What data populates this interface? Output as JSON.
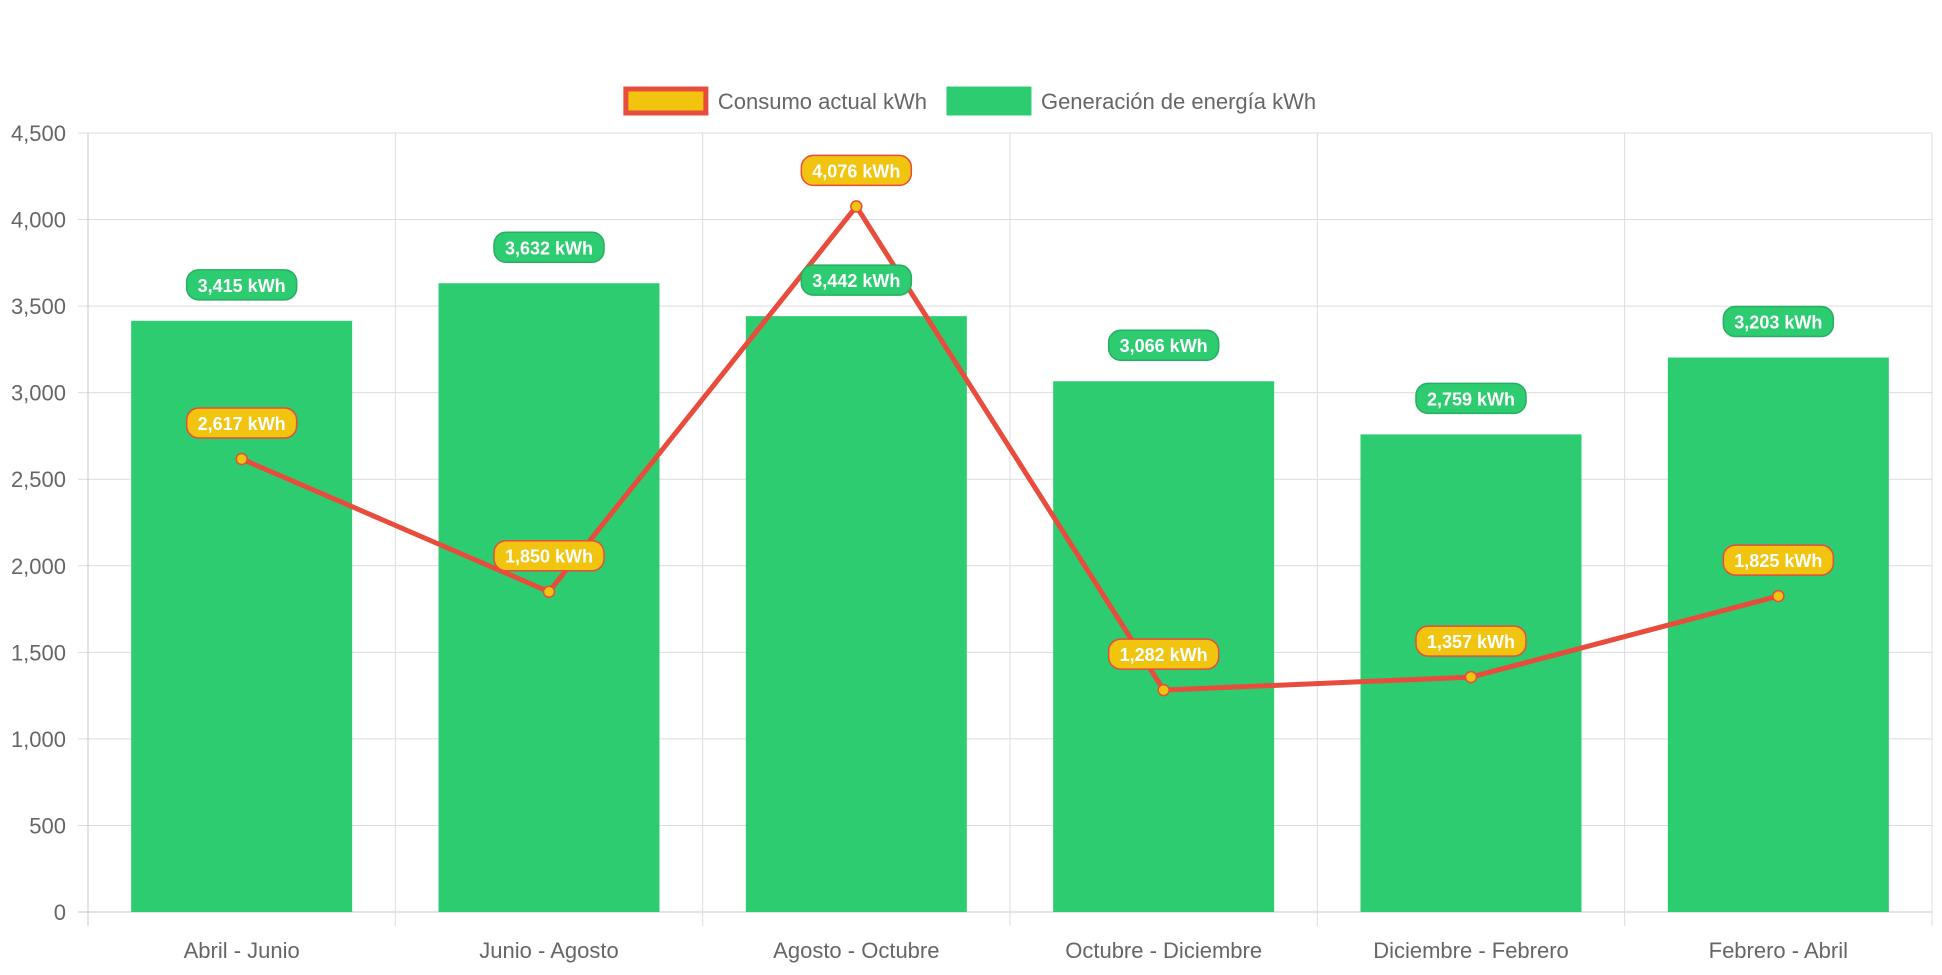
{
  "chart_data": {
    "type": "bar",
    "categories": [
      "Abril - Junio",
      "Junio - Agosto",
      "Agosto - Octubre",
      "Octubre - Diciembre",
      "Diciembre - Febrero",
      "Febrero - Abril"
    ],
    "series": [
      {
        "name": "Generación de energía kWh",
        "type": "bar",
        "values": [
          3415,
          3632,
          3442,
          3066,
          2759,
          3203
        ],
        "labels": [
          "3,415 kWh",
          "3,632 kWh",
          "3,442 kWh",
          "3,066 kWh",
          "2,759 kWh",
          "3,203 kWh"
        ],
        "color": "#2ecc71"
      },
      {
        "name": "Consumo actual kWh",
        "type": "line",
        "values": [
          2617,
          1850,
          4076,
          1282,
          1357,
          1825
        ],
        "labels": [
          "2,617 kWh",
          "1,850 kWh",
          "4,076 kWh",
          "1,282 kWh",
          "1,357 kWh",
          "1,825 kWh"
        ],
        "color": "#e74c3c",
        "point_color": "#f1c40f"
      }
    ],
    "legend": {
      "position": "top",
      "items": [
        {
          "label": "Consumo actual kWh",
          "fill": "#f1c40f",
          "stroke": "#e74c3c"
        },
        {
          "label": "Generación de energía kWh",
          "fill": "#2ecc71",
          "stroke": "#2ecc71"
        }
      ]
    },
    "yticks": [
      "0",
      "500",
      "1,000",
      "1,500",
      "2,000",
      "2,500",
      "3,000",
      "3,500",
      "4,000",
      "4,500"
    ],
    "ylim": [
      0,
      4500
    ],
    "grid": true,
    "title": "",
    "xlabel": "",
    "ylabel": ""
  }
}
